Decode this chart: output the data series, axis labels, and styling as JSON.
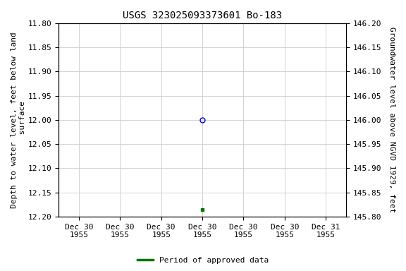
{
  "title": "USGS 323025093373601 Bo-183",
  "left_ylabel": "Depth to water level, feet below land\n surface",
  "right_ylabel": "Groundwater level above NGVD 1929, feet",
  "ylim_left": [
    11.8,
    12.2
  ],
  "ylim_right": [
    145.8,
    146.2
  ],
  "left_yticks": [
    11.8,
    11.85,
    11.9,
    11.95,
    12.0,
    12.05,
    12.1,
    12.15,
    12.2
  ],
  "right_yticks": [
    145.8,
    145.85,
    145.9,
    145.95,
    146.0,
    146.05,
    146.1,
    146.15,
    146.2
  ],
  "data_point_x_num": 3.5,
  "data_point_y_depth": 12.0,
  "data_point_marker": "o",
  "data_point_color": "#0000cc",
  "data_point_facecolor": "none",
  "data_point_markersize": 5,
  "approved_x_num": 3.5,
  "approved_y_depth": 12.185,
  "approved_color": "#007700",
  "approved_marker": "s",
  "approved_markersize": 3,
  "background_color": "#ffffff",
  "grid_color": "#cccccc",
  "title_fontsize": 10,
  "axis_label_fontsize": 8,
  "tick_fontsize": 8,
  "legend_label": "Period of approved data",
  "legend_color": "#007700",
  "xlim": [
    0,
    7
  ],
  "xtick_positions": [
    0.5,
    1.5,
    2.5,
    3.5,
    4.5,
    5.5,
    6.5
  ],
  "xtick_labels": [
    "Dec 30\n1955",
    "Dec 30\n1955",
    "Dec 30\n1955",
    "Dec 30\n1955",
    "Dec 30\n1955",
    "Dec 30\n1955",
    "Dec 31\n1955"
  ]
}
